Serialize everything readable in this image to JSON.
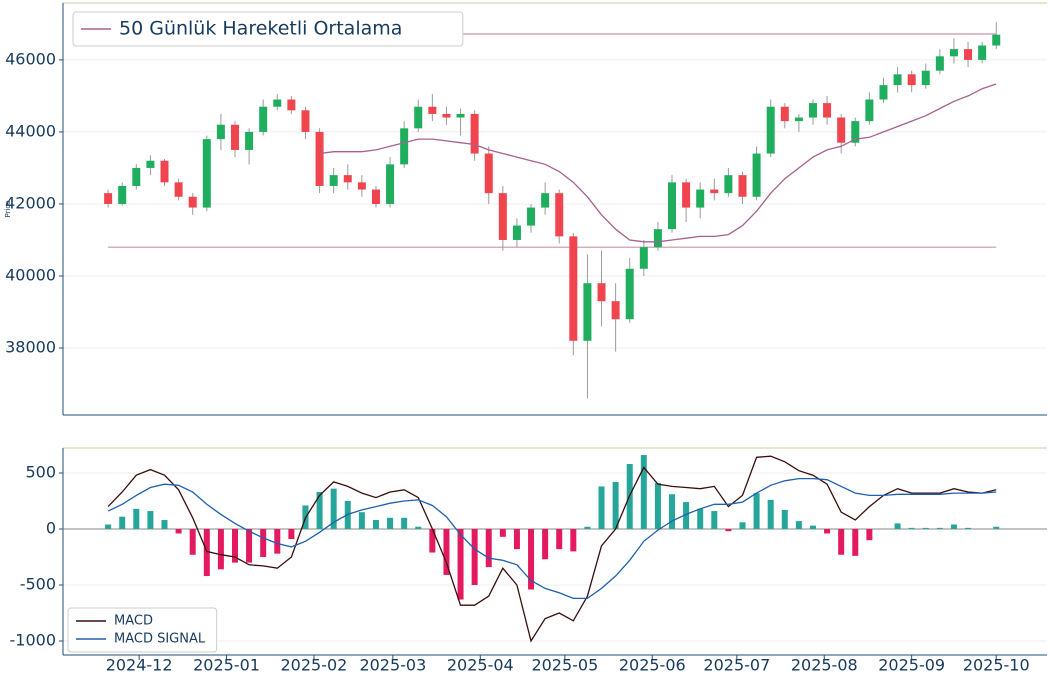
{
  "chart_data": [
    {
      "type": "candlestick",
      "ylabel": "Price",
      "x": [
        "2024-11-20",
        "2024-11-25",
        "2024-11-30",
        "2024-12-05",
        "2024-12-10",
        "2024-12-15",
        "2024-12-20",
        "2024-12-25",
        "2024-12-30",
        "2025-01-04",
        "2025-01-09",
        "2025-01-14",
        "2025-01-19",
        "2025-01-24",
        "2025-01-29",
        "2025-02-03",
        "2025-02-08",
        "2025-02-13",
        "2025-02-18",
        "2025-02-23",
        "2025-02-28",
        "2025-03-05",
        "2025-03-10",
        "2025-03-15",
        "2025-03-20",
        "2025-03-25",
        "2025-03-30",
        "2025-04-04",
        "2025-04-09",
        "2025-04-14",
        "2025-04-19",
        "2025-04-24",
        "2025-04-29",
        "2025-05-04",
        "2025-05-09",
        "2025-05-14",
        "2025-05-19",
        "2025-05-24",
        "2025-05-29",
        "2025-06-03",
        "2025-06-08",
        "2025-06-13",
        "2025-06-18",
        "2025-06-23",
        "2025-06-28",
        "2025-07-03",
        "2025-07-08",
        "2025-07-13",
        "2025-07-18",
        "2025-07-23",
        "2025-07-28",
        "2025-08-02",
        "2025-08-07",
        "2025-08-12",
        "2025-08-17",
        "2025-08-22",
        "2025-08-27",
        "2025-09-01",
        "2025-09-06",
        "2025-09-11",
        "2025-09-16",
        "2025-09-21",
        "2025-09-26",
        "2025-10-01"
      ],
      "open": [
        42300,
        42000,
        42500,
        43000,
        43200,
        42600,
        42200,
        41900,
        43800,
        44200,
        43500,
        44000,
        44700,
        44900,
        44600,
        44000,
        42500,
        42800,
        42600,
        42400,
        42000,
        43100,
        44100,
        44700,
        44500,
        44400,
        44500,
        43400,
        42300,
        41000,
        41400,
        41900,
        42300,
        41100,
        38200,
        39800,
        39300,
        38800,
        40200,
        40800,
        41300,
        42600,
        41900,
        42400,
        42300,
        42800,
        42200,
        43400,
        44700,
        44300,
        44400,
        44800,
        44400,
        43700,
        44300,
        44900,
        45300,
        45600,
        45300,
        45700,
        46100,
        46300,
        46000,
        46400
      ],
      "high": [
        42400,
        42600,
        43100,
        43350,
        43250,
        42700,
        42300,
        43900,
        44500,
        44300,
        44100,
        44900,
        45050,
        45000,
        44700,
        44100,
        43000,
        43100,
        42800,
        42500,
        43300,
        44300,
        44900,
        45050,
        44700,
        44650,
        44600,
        43600,
        42500,
        41600,
        42000,
        42600,
        42400,
        41200,
        40600,
        40700,
        39800,
        40500,
        41000,
        41500,
        42800,
        42700,
        42600,
        42700,
        43000,
        42900,
        43600,
        44900,
        44800,
        44500,
        44900,
        45000,
        44500,
        44400,
        45100,
        45500,
        45800,
        45700,
        45900,
        46300,
        46600,
        46500,
        46500,
        47050
      ],
      "low": [
        41900,
        41950,
        42400,
        42800,
        42500,
        42100,
        41700,
        41800,
        43500,
        43300,
        43100,
        43900,
        44600,
        44500,
        43800,
        42300,
        42300,
        42400,
        42200,
        41900,
        41900,
        43000,
        44000,
        44300,
        44200,
        43900,
        43200,
        42000,
        40700,
        40800,
        41200,
        41700,
        40900,
        37800,
        36600,
        38600,
        37900,
        38700,
        40000,
        40700,
        41200,
        41500,
        41600,
        42100,
        42200,
        42000,
        42100,
        43300,
        44100,
        44000,
        44200,
        44200,
        43400,
        43600,
        44200,
        44800,
        45100,
        45100,
        45200,
        45600,
        45900,
        45800,
        45900,
        46300
      ],
      "close": [
        42000,
        42500,
        43000,
        43200,
        42600,
        42200,
        41900,
        43800,
        44200,
        43500,
        44000,
        44700,
        44900,
        44600,
        44000,
        42500,
        42800,
        42600,
        42400,
        42000,
        43100,
        44100,
        44700,
        44500,
        44400,
        44500,
        43400,
        42300,
        41000,
        41400,
        41900,
        42300,
        41100,
        38200,
        39800,
        39300,
        38800,
        40200,
        40800,
        41300,
        42600,
        41900,
        42400,
        42300,
        42800,
        42200,
        43400,
        44700,
        44300,
        44400,
        44800,
        44400,
        43700,
        44300,
        44900,
        45300,
        45600,
        45300,
        45700,
        46100,
        46300,
        46000,
        46400,
        46700
      ],
      "up_color": "#1fae5e",
      "down_color": "#f0454f",
      "series": [
        {
          "name": "50 Günlük Hareketli Ortalama",
          "color": "#a8608f",
          "values": [
            null,
            null,
            null,
            null,
            null,
            null,
            null,
            null,
            null,
            null,
            null,
            null,
            null,
            null,
            null,
            43400,
            43450,
            43450,
            43450,
            43500,
            43600,
            43700,
            43800,
            43800,
            43750,
            43700,
            43650,
            43500,
            43400,
            43300,
            43200,
            43100,
            42900,
            42600,
            42200,
            41700,
            41300,
            41000,
            40950,
            40950,
            41000,
            41050,
            41100,
            41100,
            41150,
            41400,
            41800,
            42300,
            42700,
            43000,
            43300,
            43500,
            43600,
            43800,
            43850,
            44000,
            44150,
            44300,
            44450,
            44650,
            44850,
            45000,
            45200,
            45330
          ]
        }
      ],
      "hlines": [
        46720,
        40800
      ],
      "hline_color": "#c994ab",
      "xlim": [
        "2024-11-04",
        "2025-10-19"
      ],
      "ylim": [
        36140,
        47580
      ],
      "yticks": [
        38000,
        40000,
        42000,
        44000,
        46000
      ],
      "grid": true,
      "legend": "upper left"
    },
    {
      "type": "macd",
      "x": [
        "2024-11-20",
        "2024-11-25",
        "2024-11-30",
        "2024-12-05",
        "2024-12-10",
        "2024-12-15",
        "2024-12-20",
        "2024-12-25",
        "2024-12-30",
        "2025-01-04",
        "2025-01-09",
        "2025-01-14",
        "2025-01-19",
        "2025-01-24",
        "2025-01-29",
        "2025-02-03",
        "2025-02-08",
        "2025-02-13",
        "2025-02-18",
        "2025-02-23",
        "2025-02-28",
        "2025-03-05",
        "2025-03-10",
        "2025-03-15",
        "2025-03-20",
        "2025-03-25",
        "2025-03-30",
        "2025-04-04",
        "2025-04-09",
        "2025-04-14",
        "2025-04-19",
        "2025-04-24",
        "2025-04-29",
        "2025-05-04",
        "2025-05-09",
        "2025-05-14",
        "2025-05-19",
        "2025-05-24",
        "2025-05-29",
        "2025-06-03",
        "2025-06-08",
        "2025-06-13",
        "2025-06-18",
        "2025-06-23",
        "2025-06-28",
        "2025-07-03",
        "2025-07-08",
        "2025-07-13",
        "2025-07-18",
        "2025-07-23",
        "2025-07-28",
        "2025-08-02",
        "2025-08-07",
        "2025-08-12",
        "2025-08-17",
        "2025-08-22",
        "2025-08-27",
        "2025-09-01",
        "2025-09-06",
        "2025-09-11",
        "2025-09-16",
        "2025-09-21",
        "2025-09-26",
        "2025-10-01"
      ],
      "series": [
        {
          "name": "MACD",
          "color": "#3a0d0d",
          "values": [
            200,
            330,
            480,
            530,
            480,
            350,
            100,
            -200,
            -230,
            -250,
            -320,
            -330,
            -350,
            -250,
            100,
            300,
            420,
            380,
            320,
            280,
            330,
            350,
            280,
            0,
            -300,
            -680,
            -680,
            -600,
            -350,
            -500,
            -1000,
            -800,
            -750,
            -820,
            -600,
            -150,
            0,
            300,
            550,
            400,
            380,
            370,
            360,
            380,
            200,
            300,
            640,
            650,
            600,
            520,
            480,
            400,
            150,
            80,
            200,
            300,
            360,
            320,
            320,
            320,
            360,
            330,
            320,
            350
          ]
        },
        {
          "name": "MACD SIGNAL",
          "color": "#1f5fb0",
          "values": [
            160,
            220,
            300,
            370,
            400,
            390,
            330,
            220,
            130,
            50,
            -20,
            -80,
            -130,
            -160,
            -110,
            -30,
            60,
            130,
            170,
            200,
            230,
            250,
            260,
            210,
            110,
            -50,
            -180,
            -260,
            -280,
            -320,
            -460,
            -530,
            -570,
            -620,
            -620,
            -530,
            -420,
            -280,
            -110,
            -10,
            70,
            130,
            180,
            220,
            220,
            240,
            320,
            390,
            430,
            450,
            450,
            440,
            380,
            320,
            300,
            300,
            310,
            310,
            310,
            310,
            320,
            320,
            320,
            330
          ]
        }
      ],
      "histogram": {
        "up_color": "#26a69a",
        "down_color": "#e31a5f",
        "values": [
          40,
          110,
          180,
          160,
          80,
          -40,
          -230,
          -420,
          -360,
          -300,
          -300,
          -250,
          -220,
          -90,
          210,
          330,
          360,
          250,
          150,
          80,
          100,
          100,
          20,
          -210,
          -410,
          -630,
          -500,
          -340,
          -70,
          -180,
          -540,
          -270,
          -180,
          -200,
          20,
          380,
          420,
          580,
          660,
          410,
          310,
          240,
          180,
          160,
          -20,
          60,
          320,
          260,
          170,
          70,
          30,
          -40,
          -230,
          -240,
          -100,
          0,
          50,
          10,
          10,
          10,
          40,
          10,
          0,
          20
        ]
      },
      "xlim": [
        "2024-11-04",
        "2025-10-19"
      ],
      "xticks": [
        {
          "value": "2024-12-01",
          "label": "2024-12"
        },
        {
          "value": "2025-01-01",
          "label": "2025-01"
        },
        {
          "value": "2025-02-01",
          "label": "2025-02"
        },
        {
          "value": "2025-03-01",
          "label": "2025-03"
        },
        {
          "value": "2025-04-01",
          "label": "2025-04"
        },
        {
          "value": "2025-05-01",
          "label": "2025-05"
        },
        {
          "value": "2025-06-01",
          "label": "2025-06"
        },
        {
          "value": "2025-07-01",
          "label": "2025-07"
        },
        {
          "value": "2025-08-01",
          "label": "2025-08"
        },
        {
          "value": "2025-09-01",
          "label": "2025-09"
        },
        {
          "value": "2025-10-01",
          "label": "2025-10"
        }
      ],
      "ylim": [
        -1125,
        723
      ],
      "yticks": [
        -1000,
        -500,
        0,
        500
      ],
      "grid": true,
      "legend": "lower left"
    }
  ]
}
